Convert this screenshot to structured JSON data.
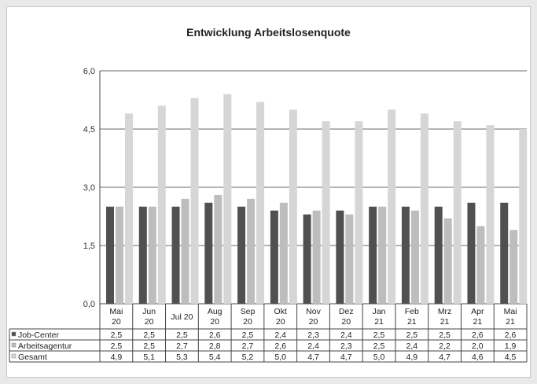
{
  "chart_data": {
    "type": "bar",
    "title": "Entwicklung  Arbeitslosenquote",
    "xlabel": "",
    "ylabel": "",
    "ylim": [
      0,
      6
    ],
    "yticks": [
      "0,0",
      "1,5",
      "3,0",
      "4,5",
      "6,0"
    ],
    "grid": true,
    "legend": "table-left",
    "categories": [
      [
        "Mai",
        "20"
      ],
      [
        "Jun",
        "20"
      ],
      [
        "Jul 20"
      ],
      [
        "Aug",
        "20"
      ],
      [
        "Sep",
        "20"
      ],
      [
        "Okt",
        "20"
      ],
      [
        "Nov",
        "20"
      ],
      [
        "Dez",
        "20"
      ],
      [
        "Jan",
        "21"
      ],
      [
        "Feb",
        "21"
      ],
      [
        "Mrz",
        "21"
      ],
      [
        "Apr",
        "21"
      ],
      [
        "Mai",
        "21"
      ]
    ],
    "series": [
      {
        "name": "Job-Center",
        "color": "#505050",
        "values": [
          2.5,
          2.5,
          2.5,
          2.6,
          2.5,
          2.4,
          2.3,
          2.4,
          2.5,
          2.5,
          2.5,
          2.6,
          2.6
        ],
        "labels": [
          "2,5",
          "2,5",
          "2,5",
          "2,6",
          "2,5",
          "2,4",
          "2,3",
          "2,4",
          "2,5",
          "2,5",
          "2,5",
          "2,6",
          "2,6"
        ]
      },
      {
        "name": "Arbeitsagentur",
        "color": "#bdbdbd",
        "values": [
          2.5,
          2.5,
          2.7,
          2.8,
          2.7,
          2.6,
          2.4,
          2.3,
          2.5,
          2.4,
          2.2,
          2.0,
          1.9
        ],
        "labels": [
          "2,5",
          "2,5",
          "2,7",
          "2,8",
          "2,7",
          "2,6",
          "2,4",
          "2,3",
          "2,5",
          "2,4",
          "2,2",
          "2,0",
          "1,9"
        ]
      },
      {
        "name": "Gesamt",
        "color": "#d6d6d6",
        "values": [
          4.9,
          5.1,
          5.3,
          5.4,
          5.2,
          5.0,
          4.7,
          4.7,
          5.0,
          4.9,
          4.7,
          4.6,
          4.5
        ],
        "labels": [
          "4,9",
          "5,1",
          "5,3",
          "5,4",
          "5,2",
          "5,0",
          "4,7",
          "4,7",
          "5,0",
          "4,9",
          "4,7",
          "4,6",
          "4,5"
        ]
      }
    ]
  }
}
